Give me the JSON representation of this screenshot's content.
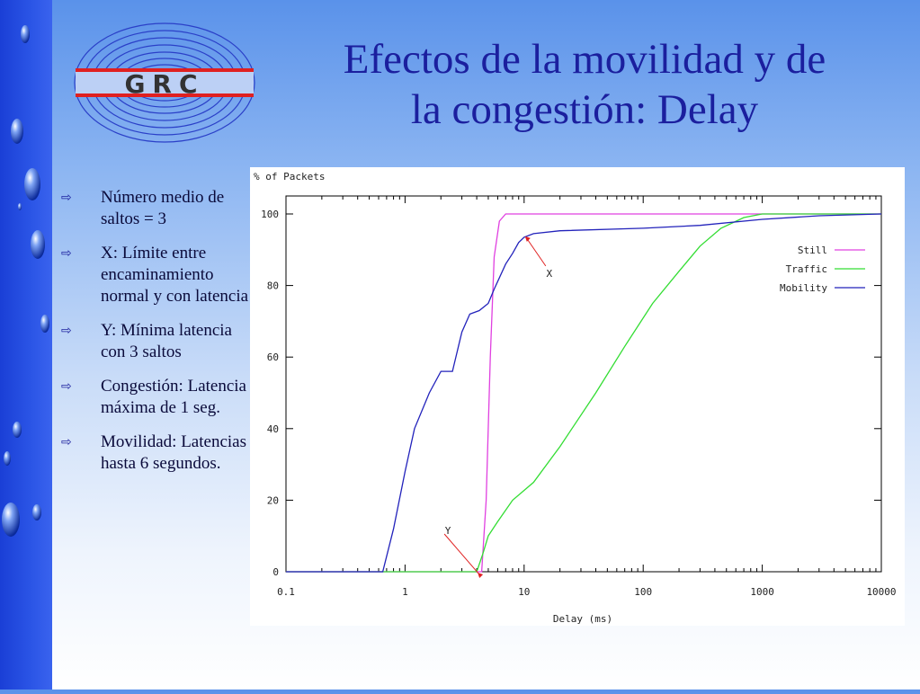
{
  "slide": {
    "title_lines": [
      "Efectos de la movilidad y de",
      "la congestión: Delay"
    ],
    "logo_text": "GRC",
    "bullets": [
      "Número medio de saltos = 3",
      "X: Límite entre encaminamiento normal y con latencia",
      "Y: Mínima latencia con 3 saltos",
      "Congestión: Latencia máxima de 1 seg.",
      "Movilidad: Latencias hasta 6 segundos."
    ],
    "bullet_icon": "hollow-right-arrow-icon"
  },
  "chart_data": {
    "type": "line",
    "ylabel": "% of Packets",
    "xlabel": "Delay (ms)",
    "x_scale": "log",
    "xlim": [
      0.1,
      10000
    ],
    "ylim": [
      0,
      100
    ],
    "x_ticks": [
      0.1,
      1,
      10,
      100,
      1000,
      10000
    ],
    "x_tick_labels": [
      "0.1",
      "1",
      "10",
      "100",
      "1000",
      "10000"
    ],
    "y_ticks": [
      0,
      20,
      40,
      60,
      80,
      100
    ],
    "y_tick_labels": [
      "0",
      "20",
      "40",
      "60",
      "80",
      "100"
    ],
    "legend_position": "top-right",
    "grid": false,
    "series": [
      {
        "name": "Still",
        "color": "#e040e0",
        "points": [
          [
            0.1,
            0
          ],
          [
            4.4,
            0
          ],
          [
            4.8,
            20
          ],
          [
            5.2,
            60
          ],
          [
            5.6,
            88
          ],
          [
            6.2,
            98
          ],
          [
            7,
            100
          ],
          [
            10000,
            100
          ]
        ]
      },
      {
        "name": "Traffic",
        "color": "#33dd33",
        "points": [
          [
            0.1,
            0
          ],
          [
            4,
            0
          ],
          [
            4.5,
            5
          ],
          [
            5,
            10
          ],
          [
            6,
            14
          ],
          [
            8,
            20
          ],
          [
            12,
            25
          ],
          [
            20,
            35
          ],
          [
            40,
            50
          ],
          [
            70,
            63
          ],
          [
            120,
            75
          ],
          [
            200,
            84
          ],
          [
            300,
            91
          ],
          [
            450,
            96
          ],
          [
            700,
            99
          ],
          [
            1000,
            100
          ],
          [
            10000,
            100
          ]
        ]
      },
      {
        "name": "Mobility",
        "color": "#2222bb",
        "points": [
          [
            0.1,
            0
          ],
          [
            0.65,
            0
          ],
          [
            0.8,
            12
          ],
          [
            1,
            28
          ],
          [
            1.2,
            40
          ],
          [
            1.6,
            50
          ],
          [
            2,
            56
          ],
          [
            2.5,
            56
          ],
          [
            3,
            67
          ],
          [
            3.5,
            72
          ],
          [
            4.2,
            73
          ],
          [
            5,
            75
          ],
          [
            5.6,
            79
          ],
          [
            7,
            86
          ],
          [
            8,
            89
          ],
          [
            9,
            92
          ],
          [
            10,
            93.5
          ],
          [
            12,
            94.5
          ],
          [
            20,
            95.3
          ],
          [
            100,
            96
          ],
          [
            300,
            96.8
          ],
          [
            1000,
            98.5
          ],
          [
            3000,
            99.5
          ],
          [
            10000,
            100
          ]
        ]
      }
    ],
    "annotations": [
      {
        "label": "X",
        "x": 10,
        "y": 94
      },
      {
        "label": "Y",
        "x": 4,
        "y": 0
      }
    ]
  }
}
